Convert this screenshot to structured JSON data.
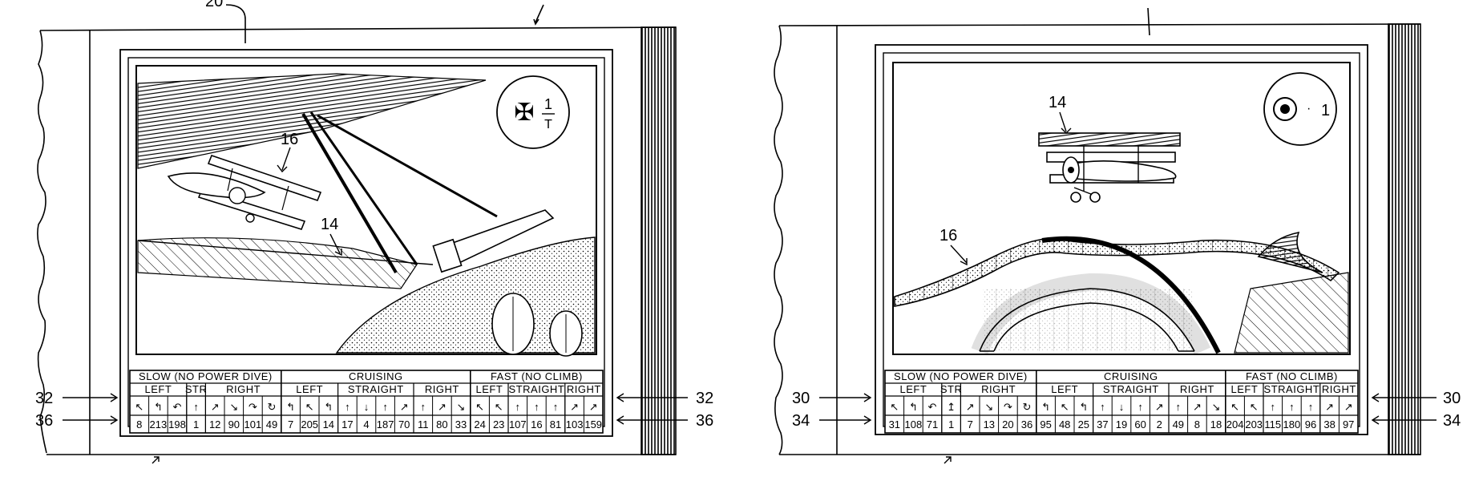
{
  "page": {
    "background": "#ffffff",
    "ink": "#000000"
  },
  "cards": [
    {
      "top_label_partial": "20",
      "side_ref_top": "32",
      "side_ref_bottom": "36",
      "insignia": {
        "icon": "iron-cross-icon",
        "text": "1",
        "sub": "T"
      },
      "callouts": {
        "enemy_plane": "16",
        "own_plane": "14"
      },
      "table": {
        "sections": [
          {
            "title": "SLOW (NO POWER DIVE)",
            "groups": [
              "LEFT",
              "STR",
              "RIGHT"
            ]
          },
          {
            "title": "CRUISING",
            "groups": [
              "LEFT",
              "STRAIGHT",
              "RIGHT"
            ]
          },
          {
            "title": "FAST (NO CLIMB)",
            "groups": [
              "LEFT",
              "STRAIGHT",
              "RIGHT"
            ]
          }
        ],
        "maneuver_icons": [
          "↖",
          "↰",
          "↶",
          "↑",
          "↗",
          "↘",
          "↷",
          "↻",
          "↰",
          "↖",
          "↰",
          "↑",
          "↓",
          "↑",
          "↗",
          "↑",
          "↗",
          "↘",
          "↖",
          "↖",
          "↑",
          "↑",
          "↑",
          "↗",
          "↗"
        ],
        "values": [
          "8",
          "213",
          "198",
          "1",
          "12",
          "90",
          "101",
          "49",
          "7",
          "205",
          "14",
          "17",
          "4",
          "187",
          "70",
          "11",
          "80",
          "33",
          "24",
          "23",
          "107",
          "16",
          "81",
          "103",
          "159"
        ]
      }
    },
    {
      "top_label_partial": "",
      "side_ref_top": "30",
      "side_ref_bottom": "34",
      "insignia": {
        "icon": "roundel-icon",
        "text": "1",
        "sub": ""
      },
      "callouts": {
        "enemy_plane": "14",
        "own_plane": "16"
      },
      "table": {
        "sections": [
          {
            "title": "SLOW (NO POWER DIVE)",
            "groups": [
              "LEFT",
              "STR",
              "RIGHT"
            ]
          },
          {
            "title": "CRUISING",
            "groups": [
              "LEFT",
              "STRAIGHT",
              "RIGHT"
            ]
          },
          {
            "title": "FAST (NO CLIMB)",
            "groups": [
              "LEFT",
              "STRAIGHT",
              "RIGHT"
            ]
          }
        ],
        "maneuver_icons": [
          "↖",
          "↰",
          "↶",
          "↥",
          "↗",
          "↘",
          "↷",
          "↻",
          "↰",
          "↖",
          "↰",
          "↑",
          "↓",
          "↑",
          "↗",
          "↑",
          "↗",
          "↘",
          "↖",
          "↖",
          "↑",
          "↑",
          "↑",
          "↗",
          "↗"
        ],
        "values": [
          "31",
          "108",
          "71",
          "1",
          "7",
          "13",
          "20",
          "36",
          "95",
          "48",
          "25",
          "37",
          "19",
          "60",
          "2",
          "49",
          "8",
          "18",
          "204",
          "203",
          "115",
          "180",
          "96",
          "38",
          "97"
        ]
      }
    }
  ]
}
